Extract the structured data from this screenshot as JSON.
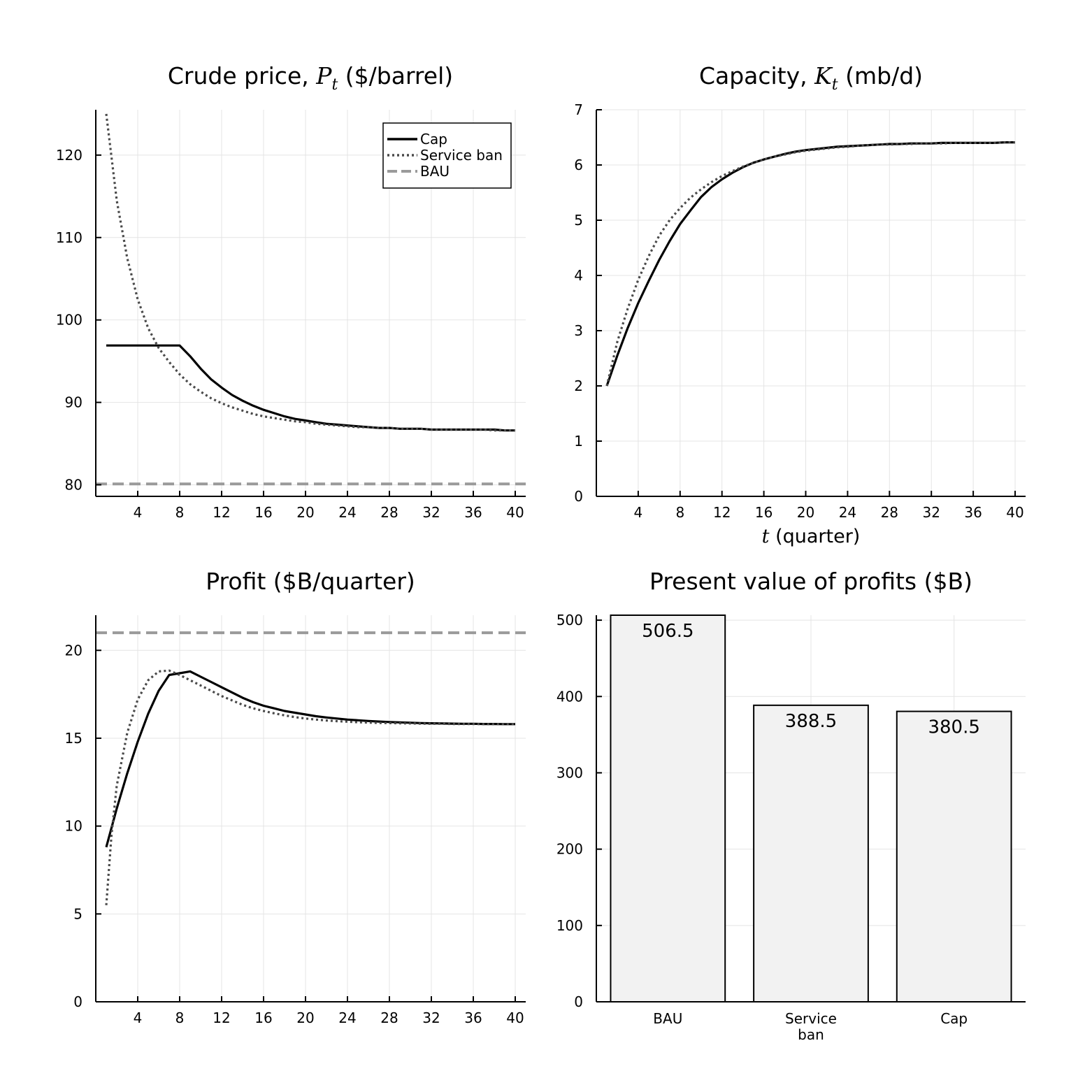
{
  "chart_data": [
    {
      "id": "price",
      "type": "line",
      "title": "Crude price, P_t ($/barrel)",
      "title_parts": {
        "pre": "Crude price, ",
        "var": "P",
        "sub": "t",
        "post": " ($/barrel)"
      },
      "xlabel": "",
      "ylabel": "",
      "xlim": [
        0,
        41
      ],
      "ylim": [
        78.6,
        125.5
      ],
      "xticks": [
        4,
        8,
        12,
        16,
        20,
        24,
        28,
        32,
        36,
        40
      ],
      "yticks": [
        80,
        90,
        100,
        110,
        120
      ],
      "grid": true,
      "legend": "top-right",
      "series": [
        {
          "name": "Cap",
          "style": "solid",
          "color": "#000000",
          "x": [
            1,
            2,
            3,
            4,
            5,
            6,
            7,
            8,
            9,
            10,
            11,
            12,
            13,
            14,
            15,
            16,
            17,
            18,
            19,
            20,
            21,
            22,
            23,
            24,
            25,
            26,
            27,
            28,
            29,
            30,
            31,
            32,
            33,
            34,
            35,
            36,
            37,
            38,
            39,
            40
          ],
          "y": [
            96.9,
            96.9,
            96.9,
            96.9,
            96.9,
            96.9,
            96.9,
            96.9,
            95.6,
            94.1,
            92.8,
            91.8,
            90.9,
            90.2,
            89.6,
            89.1,
            88.7,
            88.3,
            88.0,
            87.8,
            87.6,
            87.4,
            87.3,
            87.2,
            87.1,
            87.0,
            86.9,
            86.9,
            86.8,
            86.8,
            86.8,
            86.7,
            86.7,
            86.7,
            86.7,
            86.7,
            86.7,
            86.7,
            86.6,
            86.6
          ]
        },
        {
          "name": "Service ban",
          "style": "dotted",
          "color": "#4a4a4a",
          "x": [
            1,
            2,
            3,
            4,
            5,
            6,
            7,
            8,
            9,
            10,
            11,
            12,
            13,
            14,
            15,
            16,
            17,
            18,
            19,
            20,
            21,
            22,
            23,
            24,
            25,
            26,
            27,
            28,
            29,
            30,
            31,
            32,
            33,
            34,
            35,
            36,
            37,
            38,
            39,
            40
          ],
          "y": [
            125.0,
            114.5,
            107.5,
            102.5,
            99.0,
            96.6,
            94.9,
            93.4,
            92.2,
            91.3,
            90.5,
            89.9,
            89.4,
            89.0,
            88.6,
            88.3,
            88.1,
            87.9,
            87.7,
            87.6,
            87.4,
            87.3,
            87.2,
            87.1,
            87.0,
            87.0,
            86.9,
            86.9,
            86.8,
            86.8,
            86.8,
            86.7,
            86.7,
            86.7,
            86.7,
            86.7,
            86.7,
            86.6,
            86.6,
            86.6
          ]
        },
        {
          "name": "BAU",
          "style": "dashed",
          "color": "#9a9a9a",
          "x": [
            0,
            41
          ],
          "y": [
            80.1,
            80.1
          ]
        }
      ]
    },
    {
      "id": "capacity",
      "type": "line",
      "title": "Capacity, K_t (mb/d)",
      "title_parts": {
        "pre": "Capacity, ",
        "var": "K",
        "sub": "t",
        "post": " (mb/d)"
      },
      "xlabel": "t (quarter)",
      "xlabel_parts": {
        "var": "t",
        "post": " (quarter)"
      },
      "ylabel": "",
      "xlim": [
        0,
        41
      ],
      "ylim": [
        0,
        7
      ],
      "xticks": [
        4,
        8,
        12,
        16,
        20,
        24,
        28,
        32,
        36,
        40
      ],
      "yticks": [
        0,
        1,
        2,
        3,
        4,
        5,
        6,
        7
      ],
      "grid": true,
      "series": [
        {
          "name": "Cap",
          "style": "solid",
          "color": "#000000",
          "x": [
            1,
            2,
            3,
            4,
            5,
            6,
            7,
            8,
            9,
            10,
            11,
            12,
            13,
            14,
            15,
            16,
            17,
            18,
            19,
            20,
            21,
            22,
            23,
            24,
            25,
            26,
            27,
            28,
            29,
            30,
            31,
            32,
            33,
            34,
            35,
            36,
            37,
            38,
            39,
            40
          ],
          "y": [
            2.0,
            2.55,
            3.05,
            3.5,
            3.9,
            4.28,
            4.62,
            4.93,
            5.18,
            5.42,
            5.6,
            5.74,
            5.86,
            5.96,
            6.04,
            6.1,
            6.15,
            6.2,
            6.24,
            6.27,
            6.29,
            6.31,
            6.33,
            6.34,
            6.35,
            6.36,
            6.37,
            6.38,
            6.38,
            6.39,
            6.39,
            6.39,
            6.4,
            6.4,
            6.4,
            6.4,
            6.4,
            6.4,
            6.41,
            6.41
          ]
        },
        {
          "name": "Service ban",
          "style": "dotted",
          "color": "#4a4a4a",
          "x": [
            1,
            2,
            3,
            4,
            5,
            6,
            7,
            8,
            9,
            10,
            11,
            12,
            13,
            14,
            15,
            16,
            17,
            18,
            19,
            20,
            21,
            22,
            23,
            24,
            25,
            26,
            27,
            28,
            29,
            30,
            31,
            32,
            33,
            34,
            35,
            36,
            37,
            38,
            39,
            40
          ],
          "y": [
            2.0,
            2.8,
            3.4,
            3.92,
            4.35,
            4.72,
            5.0,
            5.22,
            5.41,
            5.56,
            5.69,
            5.8,
            5.89,
            5.97,
            6.04,
            6.1,
            6.15,
            6.19,
            6.23,
            6.26,
            6.28,
            6.3,
            6.32,
            6.33,
            6.35,
            6.36,
            6.37,
            6.37,
            6.38,
            6.38,
            6.39,
            6.39,
            6.39,
            6.4,
            6.4,
            6.4,
            6.4,
            6.4,
            6.41,
            6.41
          ]
        }
      ]
    },
    {
      "id": "profit",
      "type": "line",
      "title": "Profit ($B/quarter)",
      "xlabel": "",
      "ylabel": "",
      "xlim": [
        0,
        41
      ],
      "ylim": [
        0,
        22.0
      ],
      "xticks": [
        4,
        8,
        12,
        16,
        20,
        24,
        28,
        32,
        36,
        40
      ],
      "yticks": [
        0,
        5,
        10,
        15,
        20
      ],
      "grid": true,
      "series": [
        {
          "name": "Cap",
          "style": "solid",
          "color": "#000000",
          "x": [
            1,
            2,
            3,
            4,
            5,
            6,
            7,
            8,
            9,
            10,
            11,
            12,
            13,
            14,
            15,
            16,
            17,
            18,
            19,
            20,
            21,
            22,
            23,
            24,
            25,
            26,
            27,
            28,
            29,
            30,
            31,
            32,
            33,
            34,
            35,
            36,
            37,
            38,
            39,
            40
          ],
          "y": [
            8.8,
            11.0,
            13.0,
            14.8,
            16.4,
            17.7,
            18.6,
            18.7,
            18.8,
            18.5,
            18.2,
            17.9,
            17.6,
            17.3,
            17.05,
            16.85,
            16.7,
            16.55,
            16.45,
            16.35,
            16.25,
            16.18,
            16.12,
            16.06,
            16.02,
            15.98,
            15.95,
            15.92,
            15.9,
            15.88,
            15.86,
            15.85,
            15.84,
            15.83,
            15.82,
            15.82,
            15.81,
            15.81,
            15.8,
            15.8
          ]
        },
        {
          "name": "Service ban",
          "style": "dotted",
          "color": "#4a4a4a",
          "x": [
            1,
            1.5,
            2,
            3,
            4,
            5,
            6,
            7,
            8,
            9,
            10,
            11,
            12,
            13,
            14,
            15,
            16,
            17,
            18,
            19,
            20,
            21,
            22,
            23,
            24,
            25,
            26,
            27,
            28,
            29,
            30,
            31,
            32,
            33,
            34,
            35,
            36,
            37,
            38,
            39,
            40
          ],
          "y": [
            5.5,
            9.5,
            12.3,
            15.3,
            17.2,
            18.3,
            18.8,
            18.85,
            18.6,
            18.3,
            18.0,
            17.7,
            17.4,
            17.15,
            16.9,
            16.7,
            16.55,
            16.42,
            16.3,
            16.2,
            16.12,
            16.06,
            16.01,
            15.97,
            15.94,
            15.91,
            15.89,
            15.87,
            15.86,
            15.85,
            15.84,
            15.83,
            15.82,
            15.82,
            15.81,
            15.81,
            15.81,
            15.8,
            15.8,
            15.8,
            15.8
          ]
        },
        {
          "name": "BAU",
          "style": "dashed",
          "color": "#9a9a9a",
          "x": [
            0,
            41
          ],
          "y": [
            21.0,
            21.0
          ]
        }
      ]
    },
    {
      "id": "pv",
      "type": "bar",
      "title": "Present value of profits ($B)",
      "xlabel": "",
      "ylabel": "",
      "ylim": [
        0,
        506.5
      ],
      "yticks": [
        0,
        100,
        200,
        300,
        400,
        500
      ],
      "grid": true,
      "categories": [
        "BAU",
        "Service ban",
        "Cap"
      ],
      "category_lines": [
        [
          "BAU"
        ],
        [
          "Service",
          "ban"
        ],
        [
          "Cap"
        ]
      ],
      "values": [
        506.5,
        388.5,
        380.5
      ],
      "value_labels": [
        "506.5",
        "388.5",
        "380.5"
      ],
      "bar_fill": "#f2f2f2",
      "bar_edge": "#000000"
    }
  ]
}
